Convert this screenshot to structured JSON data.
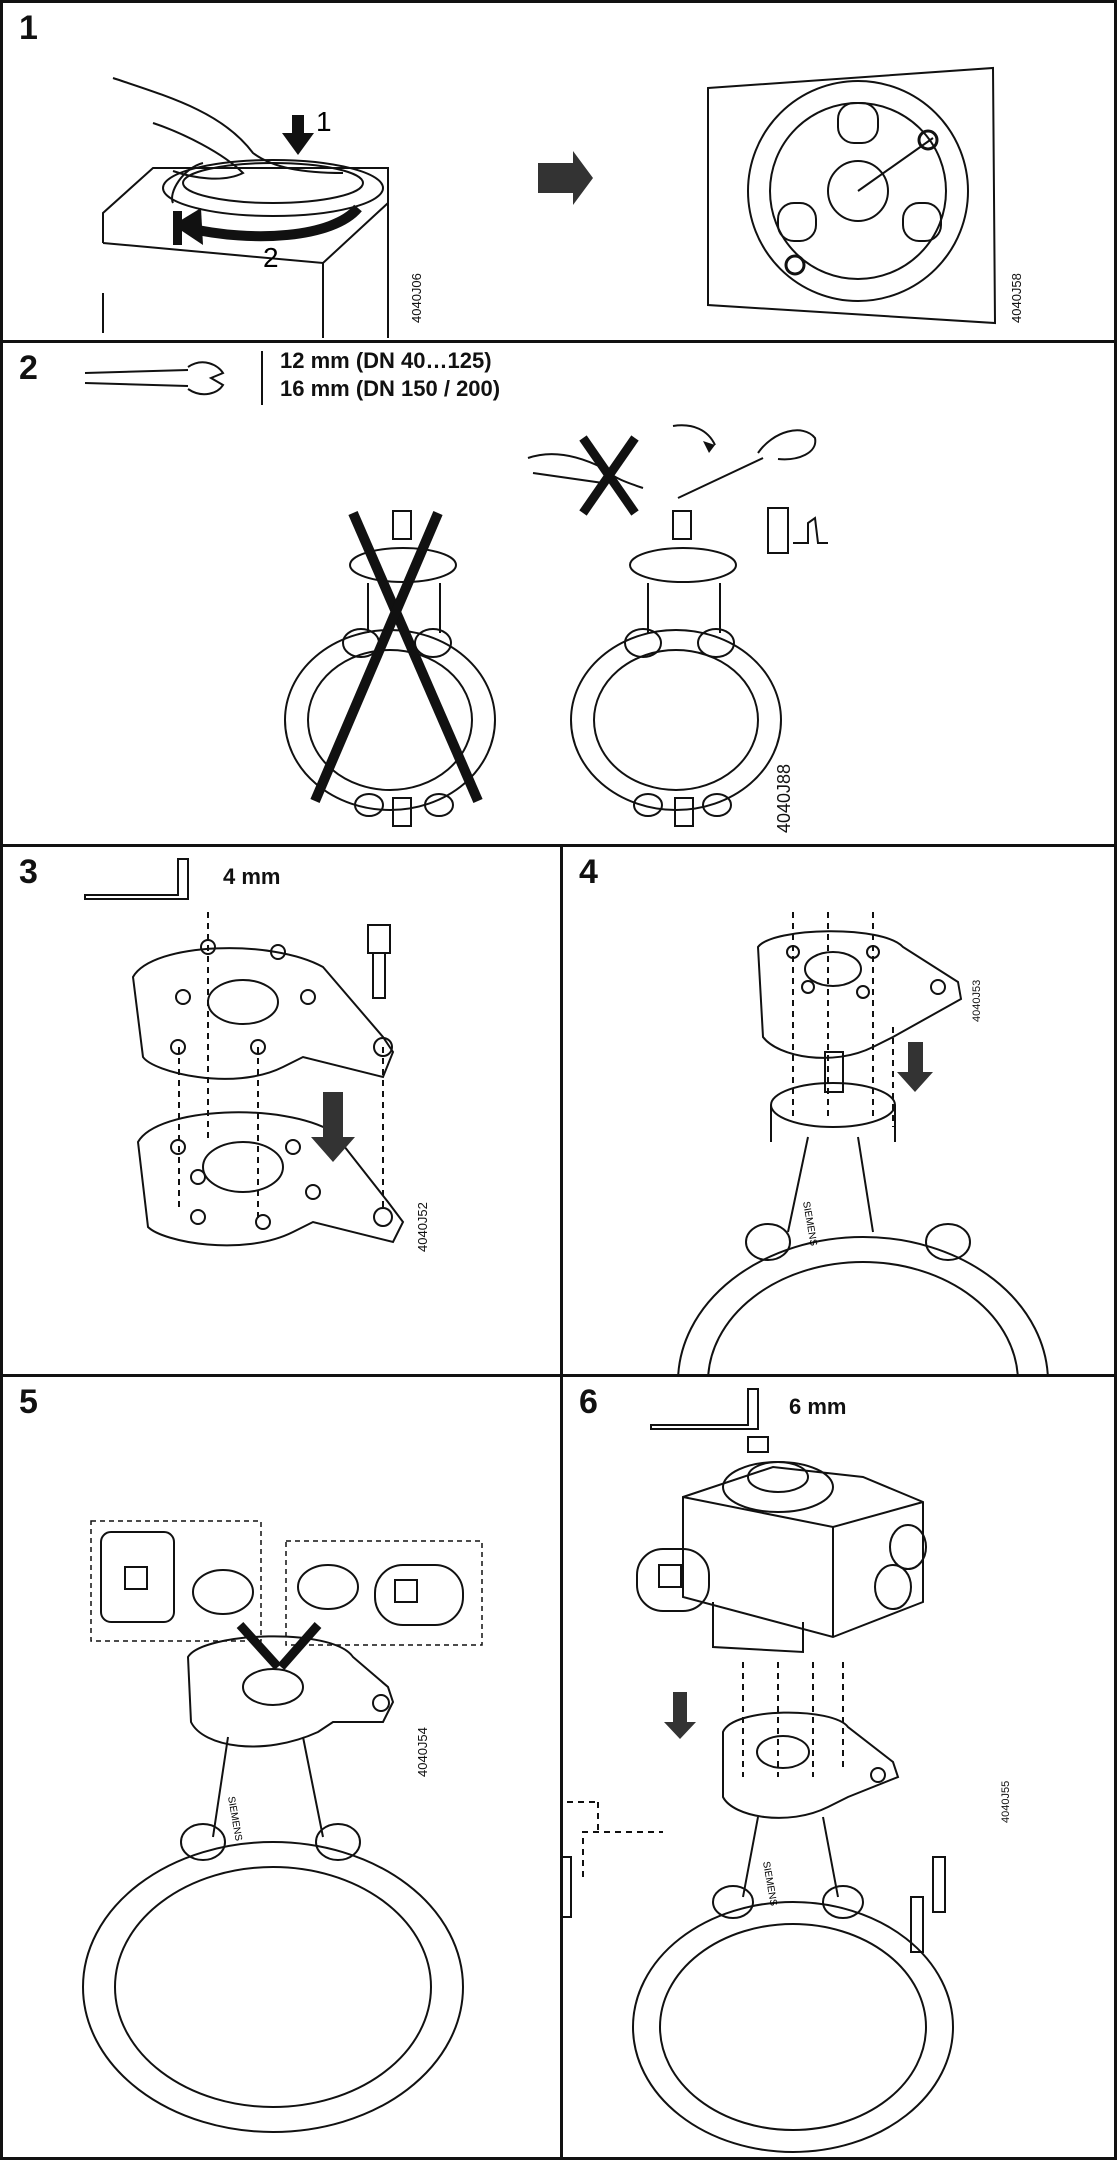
{
  "steps": [
    {
      "number": "1",
      "code_left": "4040J06",
      "code_right": "4040J58",
      "arrow_labels": [
        "1",
        "2"
      ]
    },
    {
      "number": "2",
      "sizes": [
        "12 mm (DN 40…125)",
        "16 mm (DN 150 / 200)"
      ],
      "code": "4040J88"
    },
    {
      "number": "3",
      "tool_size": "4 mm",
      "code": "4040J52"
    },
    {
      "number": "4",
      "code": "4040J53"
    },
    {
      "number": "5",
      "code": "4040J54"
    },
    {
      "number": "6",
      "tool_size": "6 mm",
      "code": "4040J55"
    }
  ],
  "brand_stamp": "SIEMENS",
  "icons": [
    "hand-press-rotate-icon",
    "right-arrow-icon",
    "wrench-icon",
    "cross-mark-icon",
    "thumbs-up-icon",
    "hex-key-icon",
    "screw-icon",
    "down-arrow-icon",
    "adapter-plate-icon",
    "butterfly-valve-icon",
    "actuator-icon",
    "position-indicator-icon"
  ]
}
